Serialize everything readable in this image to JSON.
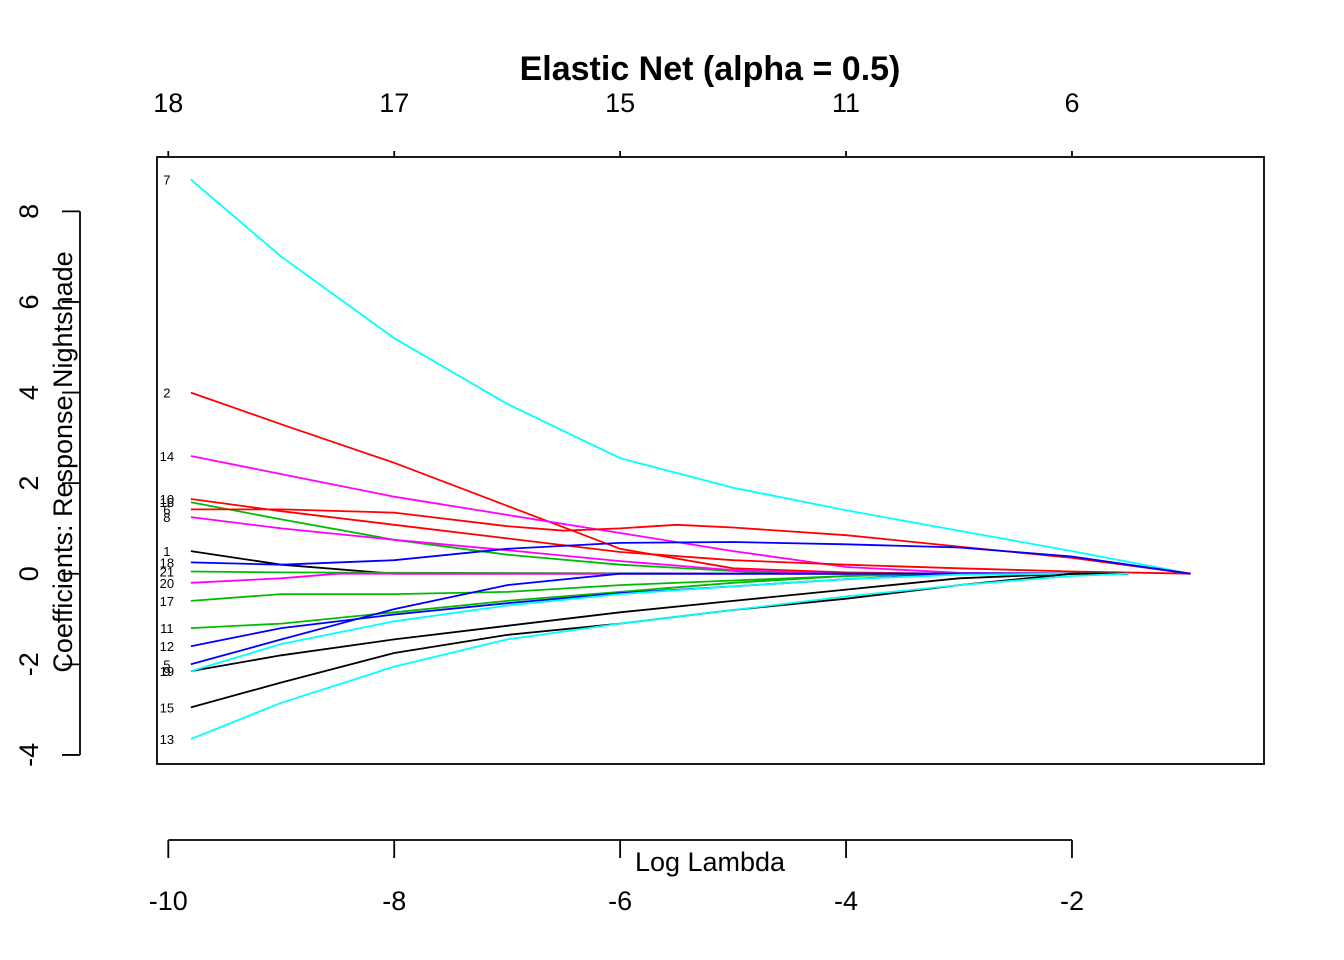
{
  "chart_data": {
    "type": "line",
    "title": "Elastic Net (alpha = 0.5)",
    "xlabel": "Log Lambda",
    "ylabel": "Coefficients: Response Nightshade",
    "xlim": [
      -10.1,
      -0.3
    ],
    "ylim": [
      -4.2,
      9.2
    ],
    "x_ticks": [
      -10,
      -8,
      -6,
      -4,
      -2
    ],
    "x_tick_labels": [
      "-10",
      "-8",
      "-6",
      "-4",
      "-2"
    ],
    "y_ticks": [
      -4,
      -2,
      0,
      2,
      4,
      6,
      8
    ],
    "y_tick_labels": [
      "-4",
      "-2",
      "0",
      "2",
      "4",
      "6",
      "8"
    ],
    "top_axis": {
      "ticks": [
        -10,
        -8,
        -6,
        -4,
        -2
      ],
      "labels": [
        "18",
        "17",
        "15",
        "11",
        "6"
      ]
    },
    "grid": false,
    "legend": "none",
    "colors": {
      "black": "#000000",
      "red": "#ff0000",
      "green": "#00bb00",
      "blue": "#0000ff",
      "cyan": "#00ffff",
      "magenta": "#ff00ff"
    },
    "series": [
      {
        "label": "7",
        "color": "#00ffff",
        "x": [
          -9.8,
          -9.0,
          -8.0,
          -7.0,
          -6.0,
          -5.0,
          -4.0,
          -3.0,
          -2.0,
          -0.95
        ],
        "values": [
          8.7,
          7.0,
          5.2,
          3.75,
          2.55,
          1.9,
          1.4,
          0.95,
          0.5,
          0
        ]
      },
      {
        "label": "2",
        "color": "#ff0000",
        "x": [
          -9.8,
          -9.0,
          -8.0,
          -7.0,
          -6.0,
          -5.0,
          -4.0,
          -3.0,
          -1.5
        ],
        "values": [
          4.0,
          3.3,
          2.45,
          1.5,
          0.55,
          0.12,
          0.03,
          0,
          0
        ]
      },
      {
        "label": "14",
        "color": "#ff00ff",
        "x": [
          -9.8,
          -9.0,
          -8.0,
          -7.0,
          -6.0,
          -5.0,
          -4.0,
          -3.0,
          -1.5
        ],
        "values": [
          2.6,
          2.2,
          1.7,
          1.3,
          0.9,
          0.5,
          0.15,
          0.02,
          0
        ]
      },
      {
        "label": "10",
        "color": "#ff0000",
        "x": [
          -9.8,
          -9.0,
          -8.0,
          -7.0,
          -6.0,
          -5.0,
          -4.0,
          -3.0,
          -2.0,
          -0.95
        ],
        "values": [
          1.65,
          1.38,
          1.08,
          0.78,
          0.48,
          0.3,
          0.2,
          0.12,
          0.05,
          0
        ]
      },
      {
        "label": "16",
        "color": "#00bb00",
        "x": [
          -9.8,
          -9.0,
          -8.0,
          -7.0,
          -6.0,
          -5.0,
          -4.5,
          -3.0,
          -1.5
        ],
        "values": [
          1.58,
          1.2,
          0.75,
          0.42,
          0.2,
          0.06,
          0,
          0,
          0
        ]
      },
      {
        "label": "6",
        "color": "#ff0000",
        "x": [
          -9.8,
          -9.0,
          -8.0,
          -7.0,
          -6.5,
          -6.0,
          -5.5,
          -5.0,
          -4.0,
          -3.0,
          -2.0,
          -0.95
        ],
        "values": [
          1.42,
          1.42,
          1.35,
          1.05,
          0.95,
          1.0,
          1.08,
          1.02,
          0.85,
          0.6,
          0.35,
          0
        ]
      },
      {
        "label": "8",
        "color": "#ff00ff",
        "x": [
          -9.8,
          -9.0,
          -8.0,
          -7.0,
          -6.0,
          -5.0,
          -4.0,
          -3.0,
          -1.5
        ],
        "values": [
          1.25,
          1.0,
          0.75,
          0.52,
          0.28,
          0.08,
          0,
          0,
          0
        ]
      },
      {
        "label": "1",
        "color": "#000000",
        "x": [
          -9.8,
          -9.0,
          -8.0,
          -7.0,
          -5.0,
          -3.0,
          -1.5
        ],
        "values": [
          0.5,
          0.2,
          0,
          0,
          0,
          0,
          0
        ]
      },
      {
        "label": "18",
        "color": "#0000ff",
        "x": [
          -9.8,
          -9.0,
          -8.0,
          -7.0,
          -6.0,
          -5.0,
          -4.0,
          -3.0,
          -2.0,
          -0.95
        ],
        "values": [
          0.25,
          0.2,
          0.3,
          0.55,
          0.68,
          0.7,
          0.65,
          0.58,
          0.38,
          0
        ]
      },
      {
        "label": "21",
        "color": "#00bb00",
        "x": [
          -9.8,
          -9.0,
          -8.0,
          -6.0,
          -4.0,
          -1.5
        ],
        "values": [
          0.05,
          0.03,
          0.02,
          0.01,
          0,
          0
        ]
      },
      {
        "label": "20",
        "color": "#ff00ff",
        "x": [
          -9.8,
          -9.0,
          -8.5,
          -8.0,
          -6.0,
          -4.0,
          -1.5
        ],
        "values": [
          -0.2,
          -0.1,
          0,
          0,
          0,
          0,
          0
        ]
      },
      {
        "label": "17",
        "color": "#00bb00",
        "x": [
          -9.8,
          -9.0,
          -8.0,
          -7.0,
          -6.0,
          -5.0,
          -4.0,
          -3.0,
          -1.5
        ],
        "values": [
          -0.6,
          -0.45,
          -0.45,
          -0.4,
          -0.25,
          -0.15,
          -0.05,
          0,
          0
        ]
      },
      {
        "label": "11",
        "color": "#00bb00",
        "x": [
          -9.8,
          -9.0,
          -8.0,
          -7.0,
          -6.0,
          -5.0,
          -4.0,
          -3.0,
          -1.5
        ],
        "values": [
          -1.2,
          -1.1,
          -0.85,
          -0.6,
          -0.4,
          -0.2,
          -0.05,
          0,
          0
        ]
      },
      {
        "label": "12",
        "color": "#0000ff",
        "x": [
          -9.8,
          -9.0,
          -8.0,
          -7.0,
          -6.0,
          -5.0,
          -4.0,
          -3.0,
          -1.5
        ],
        "values": [
          -1.6,
          -1.2,
          -0.9,
          -0.65,
          -0.43,
          -0.28,
          -0.12,
          0,
          0
        ]
      },
      {
        "label": "5",
        "color": "#0000ff",
        "x": [
          -9.8,
          -9.0,
          -8.0,
          -7.0,
          -6.0,
          -5.0,
          -4.0,
          -2.0
        ],
        "values": [
          -2.0,
          -1.45,
          -0.78,
          -0.25,
          0,
          0,
          0,
          0
        ]
      },
      {
        "label": "9",
        "color": "#000000",
        "x": [
          -9.8,
          -9.0,
          -8.0,
          -7.0,
          -6.0,
          -5.0,
          -4.0,
          -3.0,
          -2.0,
          -1.5
        ],
        "values": [
          -2.15,
          -1.8,
          -1.45,
          -1.15,
          -0.85,
          -0.6,
          -0.35,
          -0.1,
          0,
          0
        ]
      },
      {
        "label": "19",
        "color": "#00ffff",
        "x": [
          -9.8,
          -9.0,
          -8.0,
          -7.0,
          -6.0,
          -5.0,
          -4.0,
          -3.0,
          -2.0,
          -1.5
        ],
        "values": [
          -2.15,
          -1.55,
          -1.05,
          -0.7,
          -0.45,
          -0.28,
          -0.12,
          -0.02,
          0,
          0
        ]
      },
      {
        "label": "15",
        "color": "#000000",
        "x": [
          -9.8,
          -9.0,
          -8.0,
          -7.0,
          -6.0,
          -5.0,
          -4.0,
          -3.0,
          -2.0,
          -1.5
        ],
        "values": [
          -2.95,
          -2.4,
          -1.75,
          -1.35,
          -1.1,
          -0.8,
          -0.55,
          -0.25,
          0,
          0
        ]
      },
      {
        "label": "13",
        "color": "#00ffff",
        "x": [
          -9.8,
          -9.0,
          -8.0,
          -7.0,
          -6.0,
          -5.0,
          -4.0,
          -3.0,
          -2.0,
          -1.5
        ],
        "values": [
          -3.65,
          -2.85,
          -2.05,
          -1.45,
          -1.1,
          -0.8,
          -0.5,
          -0.25,
          -0.05,
          0
        ]
      }
    ],
    "curve_labels": [
      "7",
      "2",
      "14",
      "10",
      "16",
      "6",
      "8",
      "1",
      "18",
      "21",
      "20",
      "17",
      "11",
      "12",
      "5",
      "9",
      "19",
      "15",
      "13"
    ]
  }
}
